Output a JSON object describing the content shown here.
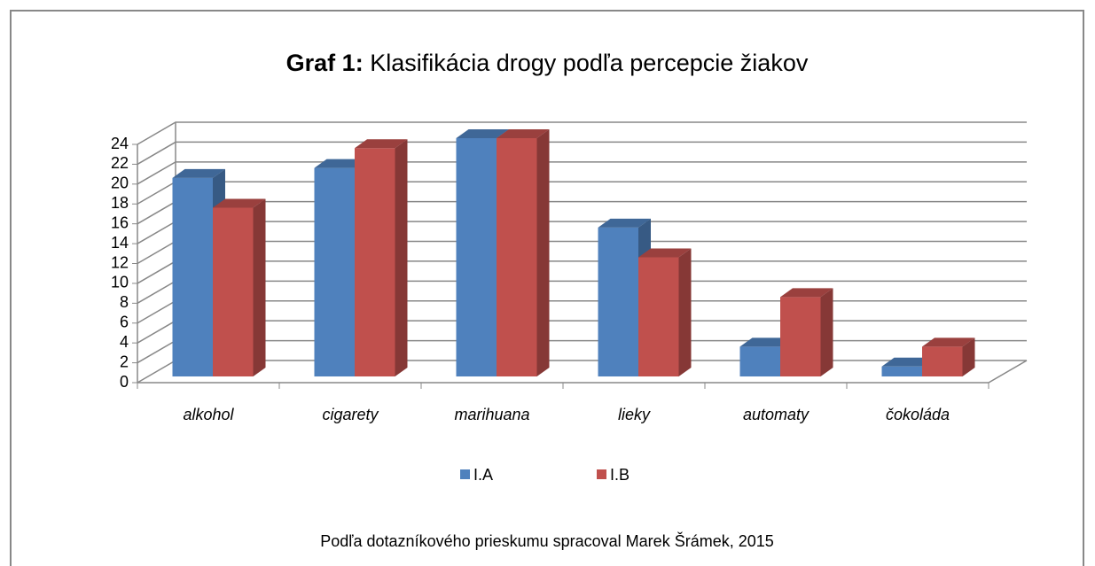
{
  "chart_data": {
    "type": "bar3d",
    "title": [
      "Graf 1:",
      "Klasifikácia drogy podľa percepcie žiakov"
    ],
    "caption": "Podľa dotazníkového prieskumu spracoval Marek Šrámek, 2015",
    "categories": [
      "alkohol",
      "cigarety",
      "marihuana",
      "lieky",
      "automaty",
      "čokoláda"
    ],
    "series": [
      {
        "name": "I.A",
        "color": "#4f81bd",
        "values": [
          20,
          21,
          24,
          15,
          3,
          1
        ]
      },
      {
        "name": "I.B",
        "color": "#c0504d",
        "values": [
          17,
          23,
          24,
          12,
          8,
          3
        ]
      }
    ],
    "ylim": [
      0,
      24
    ],
    "yticks": [
      0,
      2,
      4,
      6,
      8,
      10,
      12,
      14,
      16,
      18,
      20,
      22,
      24
    ],
    "grid": true,
    "legend": "bottom"
  }
}
